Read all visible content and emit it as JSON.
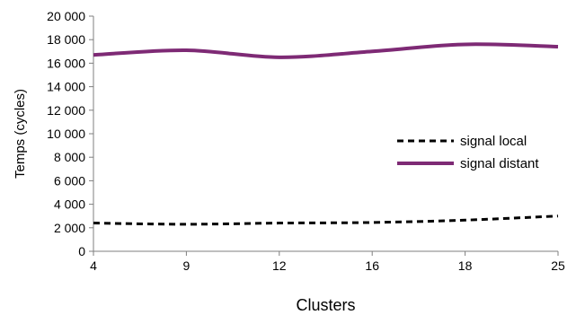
{
  "chart_data": {
    "type": "line",
    "title": "",
    "xlabel": "Clusters",
    "ylabel": "Temps (cycles)",
    "categories": [
      "4",
      "9",
      "12",
      "16",
      "18",
      "25"
    ],
    "x_positions": [
      0,
      1,
      2,
      3,
      4,
      5
    ],
    "ylim": [
      0,
      20000
    ],
    "yticks": [
      0,
      2000,
      4000,
      6000,
      8000,
      10000,
      12000,
      14000,
      16000,
      18000,
      20000
    ],
    "ytick_labels": [
      "0",
      "2 000",
      "4 000",
      "6 000",
      "8 000",
      "10 000",
      "12 000",
      "14 000",
      "16 000",
      "18 000",
      "20 000"
    ],
    "grid": false,
    "legend_position": "right",
    "series": [
      {
        "name": "signal local",
        "color": "#000000",
        "style": "dashed",
        "values": [
          2400,
          2300,
          2400,
          2450,
          2650,
          3000
        ]
      },
      {
        "name": "signal distant",
        "color": "#7e2a75",
        "style": "solid",
        "values": [
          16700,
          17100,
          16500,
          17000,
          17600,
          17400
        ]
      }
    ]
  }
}
